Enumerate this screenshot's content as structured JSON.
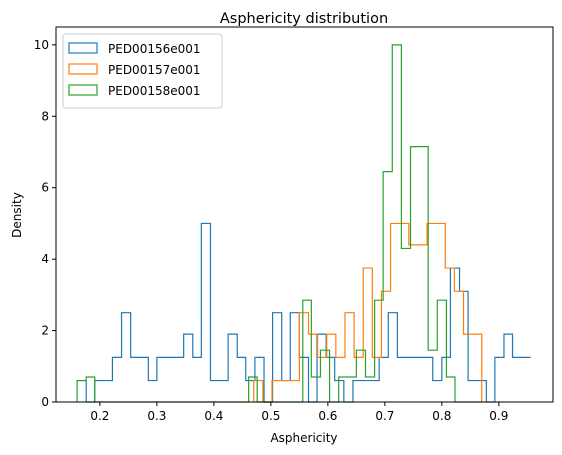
{
  "chart_data": {
    "type": "histogram-step",
    "title": "Asphericity distribution",
    "xlabel": "Asphericity",
    "ylabel": "Density",
    "xlim": [
      0.123,
      0.995
    ],
    "ylim": [
      0,
      10.5
    ],
    "xticks": [
      0.2,
      0.3,
      0.4,
      0.5,
      0.6,
      0.7,
      0.8,
      0.9
    ],
    "xtick_labels": [
      "0.2",
      "0.3",
      "0.4",
      "0.5",
      "0.6",
      "0.7",
      "0.8",
      "0.9"
    ],
    "yticks": [
      0,
      2,
      4,
      6,
      8,
      10
    ],
    "ytick_labels": [
      "0",
      "2",
      "4",
      "6",
      "8",
      "10"
    ],
    "grid": false,
    "legend_position": "top-left",
    "series": [
      {
        "name": "PED00156e001",
        "color": "#1f77b4",
        "x": [
          0.16,
          0.176,
          0.176,
          0.191,
          0.191,
          0.207,
          0.207,
          0.222,
          0.222,
          0.238,
          0.238,
          0.254,
          0.254,
          0.269,
          0.269,
          0.285,
          0.285,
          0.3,
          0.3,
          0.316,
          0.316,
          0.332,
          0.332,
          0.347,
          0.347,
          0.363,
          0.363,
          0.378,
          0.378,
          0.394,
          0.394,
          0.41,
          0.41,
          0.425,
          0.425,
          0.441,
          0.441,
          0.456,
          0.456,
          0.472,
          0.472,
          0.488,
          0.488,
          0.503,
          0.503,
          0.519,
          0.519,
          0.534,
          0.534,
          0.55,
          0.55,
          0.566,
          0.566,
          0.581,
          0.581,
          0.597,
          0.597,
          0.612,
          0.612,
          0.628,
          0.628,
          0.644,
          0.644,
          0.659,
          0.659,
          0.675,
          0.675,
          0.69,
          0.69,
          0.706,
          0.706,
          0.722,
          0.722,
          0.737,
          0.737,
          0.753,
          0.753,
          0.768,
          0.768,
          0.784,
          0.784,
          0.8,
          0.8,
          0.815,
          0.815,
          0.831,
          0.831,
          0.846,
          0.846,
          0.862,
          0.862,
          0.878,
          0.878,
          0.893,
          0.893,
          0.909,
          0.909,
          0.924,
          0.924,
          0.94,
          0.94,
          0.956
        ],
        "y": [
          0.6,
          0.6,
          0.0,
          0.0,
          0.6,
          0.6,
          0.6,
          0.6,
          1.25,
          1.25,
          2.5,
          2.5,
          1.25,
          1.25,
          1.25,
          1.25,
          0.6,
          0.6,
          1.25,
          1.25,
          1.25,
          1.25,
          1.25,
          1.25,
          1.9,
          1.9,
          1.25,
          1.25,
          5.0,
          5.0,
          0.6,
          0.6,
          0.6,
          0.6,
          1.9,
          1.9,
          1.25,
          1.25,
          0.6,
          0.6,
          1.25,
          1.25,
          0.0,
          0.0,
          2.5,
          2.5,
          0.6,
          0.6,
          2.5,
          2.5,
          1.25,
          1.25,
          0.0,
          0.0,
          1.9,
          1.9,
          1.25,
          1.25,
          0.6,
          0.6,
          0.0,
          0.0,
          0.6,
          0.6,
          0.6,
          0.6,
          0.6,
          0.6,
          1.25,
          1.25,
          2.5,
          2.5,
          1.25,
          1.25,
          1.25,
          1.25,
          1.25,
          1.25,
          1.25,
          1.25,
          0.6,
          0.6,
          1.25,
          1.25,
          3.75,
          3.75,
          3.1,
          3.1,
          0.6,
          0.6,
          0.6,
          0.6,
          0.0,
          0.0,
          1.25,
          1.25,
          1.9,
          1.9,
          1.25,
          1.25,
          1.25,
          1.25
        ]
      },
      {
        "name": "PED00157e001",
        "color": "#ff7f0e",
        "x": [
          0.47,
          0.47,
          0.486,
          0.486,
          0.502,
          0.502,
          0.518,
          0.518,
          0.534,
          0.534,
          0.55,
          0.55,
          0.566,
          0.566,
          0.582,
          0.582,
          0.598,
          0.598,
          0.614,
          0.614,
          0.63,
          0.63,
          0.646,
          0.646,
          0.662,
          0.662,
          0.678,
          0.678,
          0.694,
          0.694,
          0.71,
          0.71,
          0.726,
          0.726,
          0.742,
          0.742,
          0.758,
          0.758,
          0.774,
          0.774,
          0.79,
          0.79,
          0.806,
          0.806,
          0.822,
          0.822,
          0.838,
          0.838,
          0.854,
          0.854,
          0.87,
          0.87
        ],
        "y": [
          0.0,
          0.6,
          0.6,
          0.0,
          0.0,
          0.6,
          0.6,
          0.6,
          0.6,
          0.6,
          0.6,
          2.5,
          2.5,
          1.9,
          1.9,
          1.25,
          1.25,
          1.9,
          1.9,
          1.25,
          1.25,
          2.5,
          2.5,
          1.25,
          1.25,
          3.75,
          3.75,
          1.25,
          1.25,
          3.1,
          3.1,
          5.0,
          5.0,
          5.0,
          5.0,
          4.4,
          4.4,
          4.4,
          4.4,
          5.0,
          5.0,
          5.0,
          5.0,
          3.75,
          3.75,
          3.1,
          3.1,
          1.9,
          1.9,
          1.9,
          1.9,
          0.0
        ]
      },
      {
        "name": "PED00158e001",
        "color": "#2ca02c",
        "x": [
          0.16,
          0.16,
          0.176,
          0.176,
          0.191,
          0.191,
          0.207,
          0.207,
          0.461,
          0.461,
          0.476,
          0.476,
          0.556,
          0.556,
          0.571,
          0.571,
          0.587,
          0.587,
          0.603,
          0.603,
          0.619,
          0.619,
          0.634,
          0.634,
          0.65,
          0.65,
          0.666,
          0.666,
          0.682,
          0.682,
          0.697,
          0.697,
          0.713,
          0.713,
          0.729,
          0.729,
          0.745,
          0.745,
          0.76,
          0.76,
          0.776,
          0.776,
          0.792,
          0.792,
          0.808,
          0.808,
          0.823,
          0.823,
          0.839,
          0.839,
          0.855,
          0.855,
          0.871,
          0.871
        ],
        "y": [
          0.0,
          0.6,
          0.6,
          0.7,
          0.7,
          0.0,
          0.0,
          0.0,
          0.0,
          0.7,
          0.7,
          0.0,
          0.0,
          2.85,
          2.85,
          0.7,
          0.7,
          1.45,
          1.45,
          0.0,
          0.0,
          0.7,
          0.7,
          0.7,
          0.7,
          1.45,
          1.45,
          0.7,
          0.7,
          2.85,
          2.85,
          6.45,
          6.45,
          10.0,
          10.0,
          4.3,
          4.3,
          7.15,
          7.15,
          7.15,
          7.15,
          1.45,
          1.45,
          2.85,
          2.85,
          0.7,
          0.7,
          0.0,
          0.0,
          0.0,
          0.0,
          0.0,
          0.0,
          0.0
        ]
      }
    ]
  }
}
